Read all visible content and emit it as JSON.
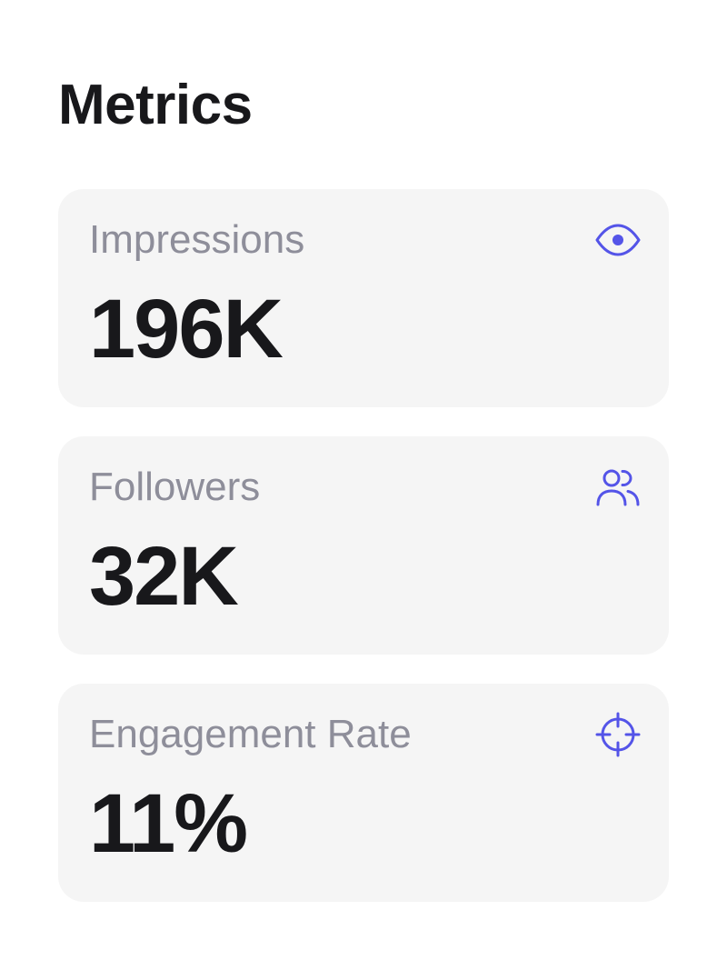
{
  "page": {
    "title": "Metrics"
  },
  "theme": {
    "accent": "#5454e8",
    "card_background": "#f5f5f5",
    "label_color": "#8e8e9a",
    "value_color": "#18181b"
  },
  "metrics": [
    {
      "label": "Impressions",
      "value": "196K",
      "icon": "eye-icon"
    },
    {
      "label": "Followers",
      "value": "32K",
      "icon": "users-icon"
    },
    {
      "label": "Engagement Rate",
      "value": "11%",
      "icon": "crosshair-icon"
    }
  ]
}
